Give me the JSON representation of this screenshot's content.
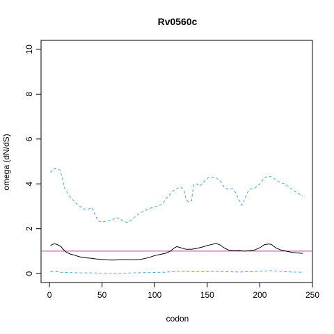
{
  "chart_data": {
    "type": "line",
    "title": "Rv0560c",
    "xlabel": "codon",
    "ylabel": "omega (dN/dS)",
    "xlim": [
      -8,
      250
    ],
    "ylim": [
      -0.4,
      10.4
    ],
    "x_ticks": [
      0,
      50,
      100,
      150,
      200,
      250
    ],
    "y_ticks": [
      0,
      2,
      4,
      6,
      8,
      10
    ],
    "reference_line": {
      "y": 1,
      "color": "#b5418f"
    },
    "grid": false,
    "legend": "none",
    "series": [
      {
        "style": "solid",
        "color": "#000000",
        "points": [
          [
            1,
            1.25
          ],
          [
            3,
            1.3
          ],
          [
            5,
            1.33
          ],
          [
            8,
            1.28
          ],
          [
            11,
            1.2
          ],
          [
            13,
            1.08
          ],
          [
            16,
            0.95
          ],
          [
            20,
            0.87
          ],
          [
            25,
            0.8
          ],
          [
            30,
            0.73
          ],
          [
            35,
            0.7
          ],
          [
            40,
            0.68
          ],
          [
            45,
            0.65
          ],
          [
            50,
            0.63
          ],
          [
            55,
            0.61
          ],
          [
            60,
            0.6
          ],
          [
            65,
            0.61
          ],
          [
            70,
            0.62
          ],
          [
            75,
            0.62
          ],
          [
            80,
            0.61
          ],
          [
            85,
            0.62
          ],
          [
            90,
            0.66
          ],
          [
            95,
            0.72
          ],
          [
            100,
            0.8
          ],
          [
            105,
            0.85
          ],
          [
            110,
            0.9
          ],
          [
            115,
            1.0
          ],
          [
            118,
            1.12
          ],
          [
            121,
            1.2
          ],
          [
            125,
            1.15
          ],
          [
            130,
            1.08
          ],
          [
            135,
            1.08
          ],
          [
            140,
            1.12
          ],
          [
            145,
            1.18
          ],
          [
            150,
            1.25
          ],
          [
            155,
            1.3
          ],
          [
            158,
            1.35
          ],
          [
            162,
            1.28
          ],
          [
            166,
            1.15
          ],
          [
            170,
            1.05
          ],
          [
            175,
            1.02
          ],
          [
            180,
            1.03
          ],
          [
            185,
            1.0
          ],
          [
            190,
            1.02
          ],
          [
            195,
            1.05
          ],
          [
            200,
            1.15
          ],
          [
            204,
            1.28
          ],
          [
            208,
            1.32
          ],
          [
            211,
            1.3
          ],
          [
            215,
            1.15
          ],
          [
            220,
            1.05
          ],
          [
            225,
            1.0
          ],
          [
            230,
            0.95
          ],
          [
            235,
            0.92
          ],
          [
            241,
            0.9
          ]
        ]
      },
      {
        "style": "dashed",
        "color": "#3fa9d9",
        "points": [
          [
            1,
            4.5
          ],
          [
            3,
            4.65
          ],
          [
            6,
            4.68
          ],
          [
            10,
            4.62
          ],
          [
            12,
            4.3
          ],
          [
            14,
            3.85
          ],
          [
            17,
            3.6
          ],
          [
            20,
            3.4
          ],
          [
            23,
            3.25
          ],
          [
            26,
            3.1
          ],
          [
            29,
            3.0
          ],
          [
            32,
            2.9
          ],
          [
            36,
            2.85
          ],
          [
            40,
            2.95
          ],
          [
            42,
            2.8
          ],
          [
            44,
            2.55
          ],
          [
            46,
            2.35
          ],
          [
            50,
            2.3
          ],
          [
            55,
            2.35
          ],
          [
            60,
            2.38
          ],
          [
            63,
            2.5
          ],
          [
            67,
            2.45
          ],
          [
            71,
            2.3
          ],
          [
            75,
            2.28
          ],
          [
            78,
            2.4
          ],
          [
            82,
            2.55
          ],
          [
            86,
            2.7
          ],
          [
            90,
            2.78
          ],
          [
            95,
            2.9
          ],
          [
            100,
            2.98
          ],
          [
            105,
            3.05
          ],
          [
            108,
            3.12
          ],
          [
            110,
            3.3
          ],
          [
            114,
            3.5
          ],
          [
            118,
            3.7
          ],
          [
            121,
            3.8
          ],
          [
            125,
            3.85
          ],
          [
            128,
            3.7
          ],
          [
            130,
            3.3
          ],
          [
            132,
            3.2
          ],
          [
            135,
            3.25
          ],
          [
            137,
            3.95
          ],
          [
            140,
            4.0
          ],
          [
            143,
            3.9
          ],
          [
            146,
            4.05
          ],
          [
            150,
            4.25
          ],
          [
            154,
            4.3
          ],
          [
            158,
            4.28
          ],
          [
            162,
            4.15
          ],
          [
            166,
            3.85
          ],
          [
            170,
            3.75
          ],
          [
            174,
            3.78
          ],
          [
            177,
            3.6
          ],
          [
            180,
            3.3
          ],
          [
            183,
            3.05
          ],
          [
            185,
            3.25
          ],
          [
            188,
            3.6
          ],
          [
            190,
            3.75
          ],
          [
            195,
            3.8
          ],
          [
            200,
            4.0
          ],
          [
            204,
            4.25
          ],
          [
            208,
            4.35
          ],
          [
            212,
            4.3
          ],
          [
            216,
            4.15
          ],
          [
            220,
            4.05
          ],
          [
            224,
            4.0
          ],
          [
            228,
            3.85
          ],
          [
            232,
            3.7
          ],
          [
            236,
            3.6
          ],
          [
            239,
            3.5
          ],
          [
            241,
            3.45
          ]
        ]
      },
      {
        "style": "dashed",
        "color": "#3fa9d9",
        "points": [
          [
            1,
            0.08
          ],
          [
            5,
            0.1
          ],
          [
            10,
            0.06
          ],
          [
            20,
            0.04
          ],
          [
            30,
            0.03
          ],
          [
            40,
            0.03
          ],
          [
            50,
            0.02
          ],
          [
            60,
            0.02
          ],
          [
            70,
            0.02
          ],
          [
            80,
            0.03
          ],
          [
            90,
            0.04
          ],
          [
            100,
            0.05
          ],
          [
            110,
            0.06
          ],
          [
            120,
            0.1
          ],
          [
            130,
            0.09
          ],
          [
            140,
            0.09
          ],
          [
            150,
            0.09
          ],
          [
            160,
            0.1
          ],
          [
            170,
            0.08
          ],
          [
            180,
            0.07
          ],
          [
            190,
            0.08
          ],
          [
            200,
            0.1
          ],
          [
            210,
            0.13
          ],
          [
            220,
            0.1
          ],
          [
            230,
            0.07
          ],
          [
            241,
            0.06
          ]
        ]
      }
    ]
  }
}
